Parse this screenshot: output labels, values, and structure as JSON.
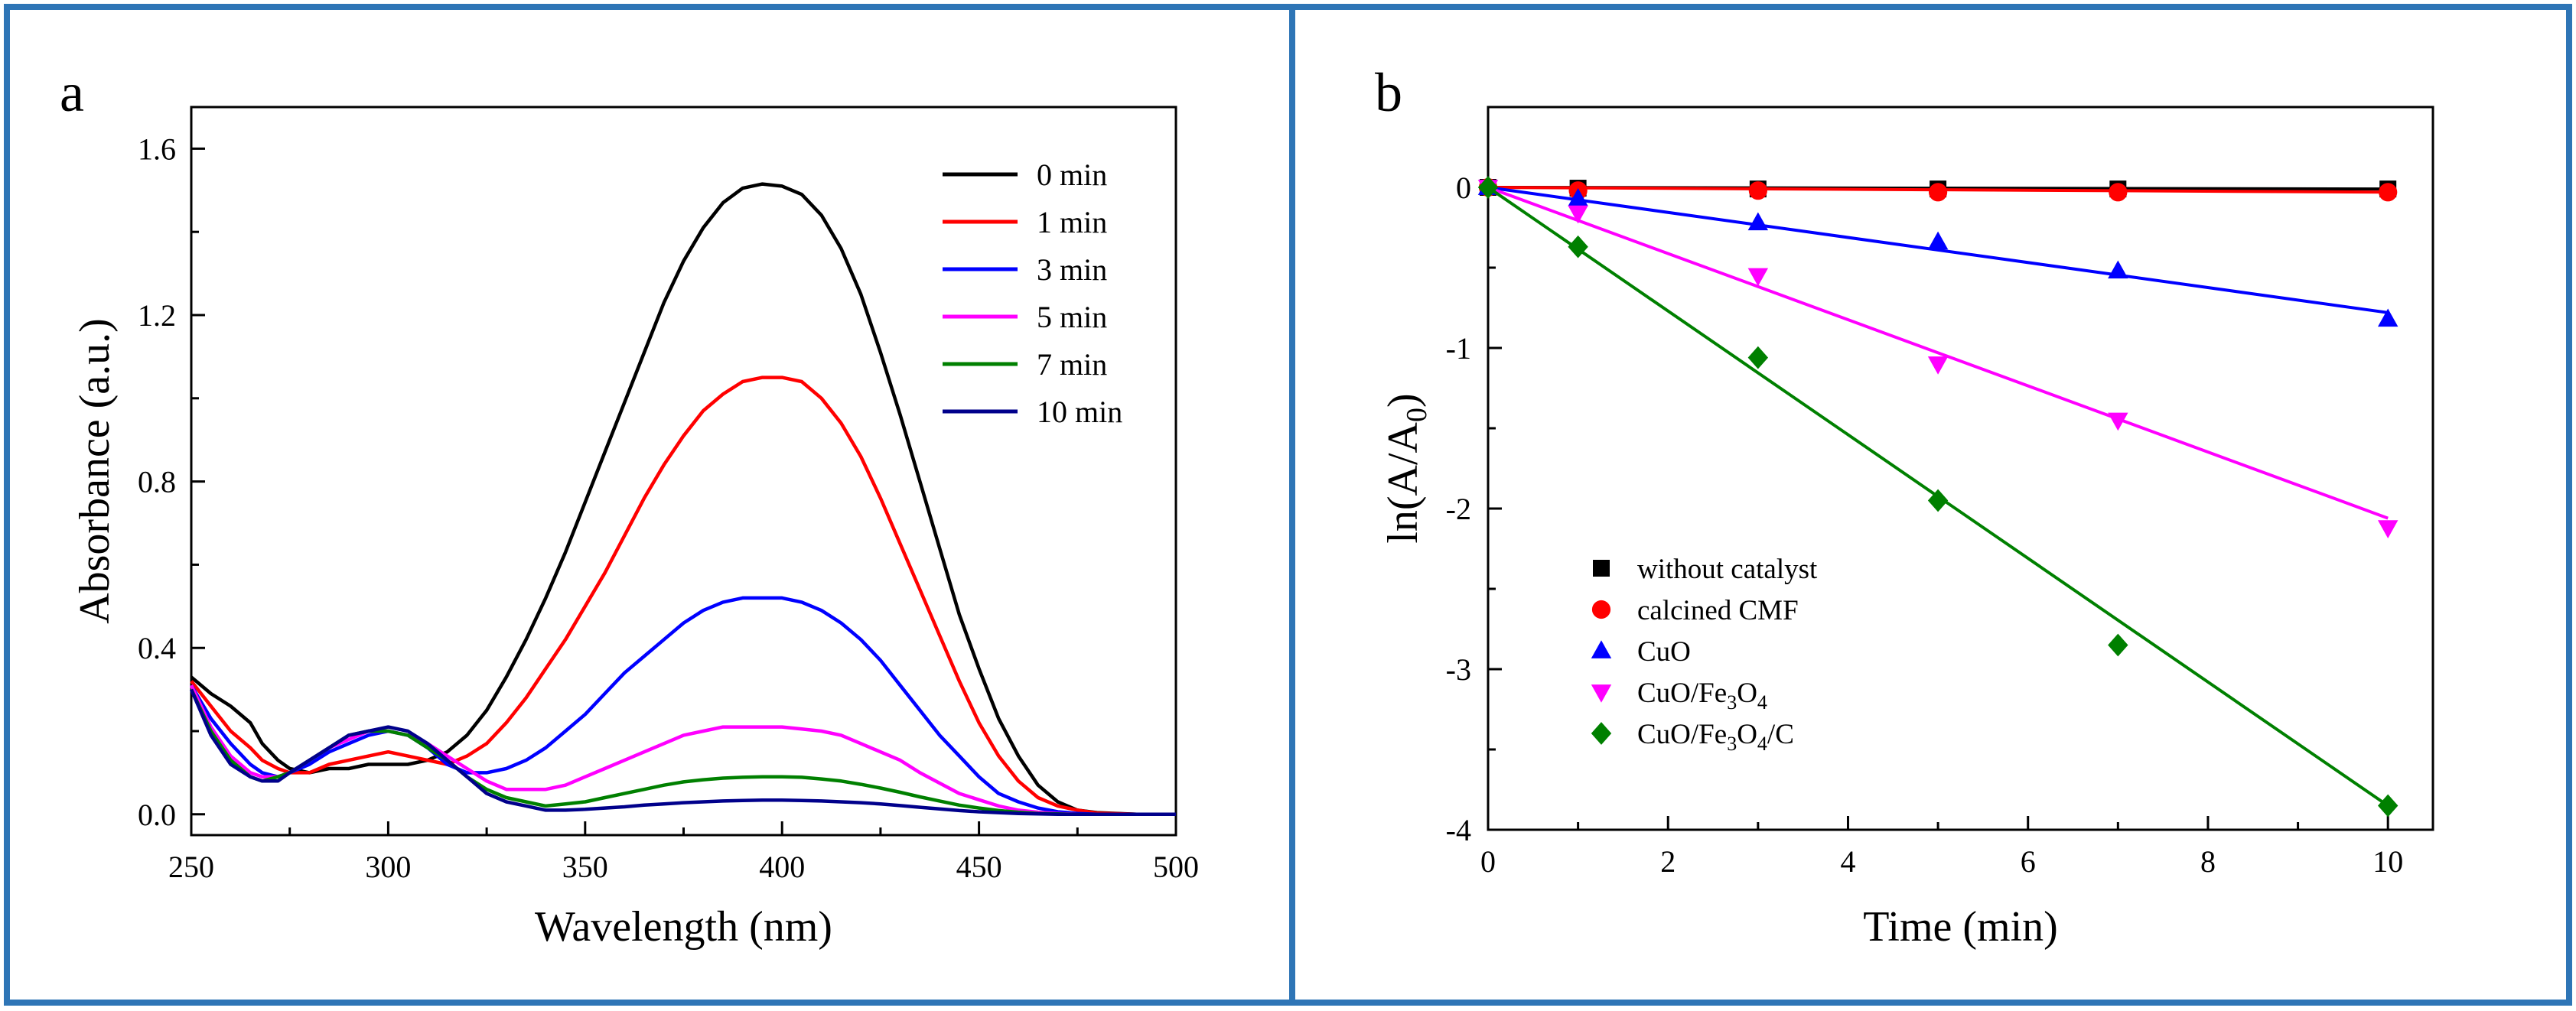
{
  "frame_color": "#2e75b6",
  "chart_data": [
    {
      "type": "line",
      "panel_label": "a",
      "title": "",
      "xlabel": "Wavelength (nm)",
      "ylabel": "Absorbance (a.u.)",
      "xlim": [
        250,
        500
      ],
      "ylim": [
        -0.05,
        1.7
      ],
      "xticks": [
        "250",
        "300",
        "350",
        "400",
        "450",
        "500"
      ],
      "yticks": [
        "0.0",
        "0.4",
        "0.8",
        "1.2",
        "1.6"
      ],
      "grid": false,
      "legend_position": "top-right",
      "x": [
        250,
        255,
        260,
        265,
        268,
        272,
        275,
        280,
        285,
        290,
        295,
        300,
        305,
        310,
        315,
        320,
        325,
        330,
        335,
        340,
        345,
        350,
        355,
        360,
        365,
        370,
        375,
        380,
        385,
        390,
        395,
        400,
        405,
        410,
        415,
        420,
        425,
        430,
        435,
        440,
        445,
        450,
        455,
        460,
        465,
        470,
        475,
        480,
        490,
        500
      ],
      "series": [
        {
          "name": "0 min",
          "color": "#000000",
          "values": [
            0.33,
            0.29,
            0.26,
            0.22,
            0.17,
            0.13,
            0.11,
            0.1,
            0.11,
            0.11,
            0.12,
            0.12,
            0.12,
            0.13,
            0.15,
            0.19,
            0.25,
            0.33,
            0.42,
            0.52,
            0.63,
            0.75,
            0.87,
            0.99,
            1.11,
            1.23,
            1.33,
            1.41,
            1.47,
            1.505,
            1.515,
            1.51,
            1.49,
            1.44,
            1.36,
            1.25,
            1.11,
            0.96,
            0.8,
            0.64,
            0.48,
            0.35,
            0.23,
            0.14,
            0.07,
            0.03,
            0.01,
            0.004,
            0.0,
            0.0
          ]
        },
        {
          "name": "1 min",
          "color": "#ff0000",
          "values": [
            0.32,
            0.26,
            0.2,
            0.16,
            0.13,
            0.11,
            0.1,
            0.1,
            0.12,
            0.13,
            0.14,
            0.15,
            0.14,
            0.13,
            0.12,
            0.14,
            0.17,
            0.22,
            0.28,
            0.35,
            0.42,
            0.5,
            0.58,
            0.67,
            0.76,
            0.84,
            0.91,
            0.97,
            1.01,
            1.04,
            1.05,
            1.05,
            1.04,
            1.0,
            0.94,
            0.86,
            0.76,
            0.65,
            0.54,
            0.43,
            0.32,
            0.22,
            0.14,
            0.08,
            0.04,
            0.02,
            0.01,
            0.003,
            0.0,
            0.0
          ]
        },
        {
          "name": "3 min",
          "color": "#0000ff",
          "values": [
            0.31,
            0.23,
            0.17,
            0.12,
            0.1,
            0.09,
            0.1,
            0.12,
            0.15,
            0.17,
            0.19,
            0.2,
            0.19,
            0.16,
            0.12,
            0.1,
            0.1,
            0.11,
            0.13,
            0.16,
            0.2,
            0.24,
            0.29,
            0.34,
            0.38,
            0.42,
            0.46,
            0.49,
            0.51,
            0.52,
            0.52,
            0.52,
            0.51,
            0.49,
            0.46,
            0.42,
            0.37,
            0.31,
            0.25,
            0.19,
            0.14,
            0.09,
            0.05,
            0.03,
            0.015,
            0.006,
            0.002,
            0.0,
            0.0,
            0.0
          ]
        },
        {
          "name": "5 min",
          "color": "#ff00ff",
          "values": [
            0.31,
            0.21,
            0.14,
            0.1,
            0.09,
            0.09,
            0.1,
            0.13,
            0.16,
            0.18,
            0.2,
            0.2,
            0.19,
            0.17,
            0.14,
            0.11,
            0.08,
            0.06,
            0.06,
            0.06,
            0.07,
            0.09,
            0.11,
            0.13,
            0.15,
            0.17,
            0.19,
            0.2,
            0.21,
            0.21,
            0.21,
            0.21,
            0.205,
            0.2,
            0.19,
            0.17,
            0.15,
            0.13,
            0.1,
            0.075,
            0.05,
            0.035,
            0.02,
            0.01,
            0.005,
            0.002,
            0.0,
            0.0,
            0.0,
            0.0
          ]
        },
        {
          "name": "7 min",
          "color": "#008000",
          "values": [
            0.3,
            0.2,
            0.13,
            0.09,
            0.08,
            0.09,
            0.1,
            0.13,
            0.16,
            0.19,
            0.2,
            0.2,
            0.19,
            0.16,
            0.13,
            0.09,
            0.06,
            0.04,
            0.03,
            0.02,
            0.025,
            0.03,
            0.04,
            0.05,
            0.06,
            0.07,
            0.078,
            0.083,
            0.087,
            0.089,
            0.09,
            0.09,
            0.089,
            0.085,
            0.08,
            0.072,
            0.063,
            0.053,
            0.042,
            0.032,
            0.022,
            0.015,
            0.009,
            0.005,
            0.002,
            0.001,
            0.0,
            0.0,
            0.0,
            0.0
          ]
        },
        {
          "name": "10 min",
          "color": "#00008b",
          "values": [
            0.3,
            0.19,
            0.12,
            0.09,
            0.08,
            0.08,
            0.1,
            0.13,
            0.16,
            0.19,
            0.2,
            0.21,
            0.2,
            0.17,
            0.13,
            0.09,
            0.05,
            0.03,
            0.02,
            0.01,
            0.01,
            0.012,
            0.015,
            0.018,
            0.022,
            0.025,
            0.028,
            0.03,
            0.032,
            0.033,
            0.034,
            0.034,
            0.033,
            0.032,
            0.03,
            0.028,
            0.025,
            0.021,
            0.017,
            0.013,
            0.009,
            0.006,
            0.004,
            0.002,
            0.001,
            0.0,
            0.0,
            0.0,
            0.0,
            0.0
          ]
        }
      ]
    },
    {
      "type": "scatter",
      "panel_label": "b",
      "title": "",
      "xlabel": "Time (min)",
      "ylabel_parts": [
        "ln(A/A",
        "0",
        ")"
      ],
      "xlim": [
        0,
        10.5
      ],
      "ylim": [
        -4.0,
        0.5
      ],
      "xticks": [
        "0",
        "2",
        "4",
        "6",
        "8",
        "10"
      ],
      "yticks": [
        "0",
        "-1",
        "-2",
        "-3",
        "-4"
      ],
      "grid": false,
      "legend_position": "bottom-left",
      "x": [
        0,
        1,
        3,
        5,
        7,
        10
      ],
      "series": [
        {
          "name": "without catalyst",
          "label_parts": [
            [
              "without catalyst",
              "n"
            ]
          ],
          "color": "#000000",
          "marker": "square",
          "values": [
            0,
            -0.005,
            -0.01,
            -0.01,
            -0.01,
            -0.01
          ],
          "fit_slope": -0.001
        },
        {
          "name": "calcined CMF",
          "label_parts": [
            [
              "calcined CMF",
              "n"
            ]
          ],
          "color": "#ff0000",
          "marker": "circle",
          "values": [
            0,
            -0.02,
            -0.02,
            -0.03,
            -0.03,
            -0.03
          ],
          "fit_slope": -0.003
        },
        {
          "name": "CuO",
          "label_parts": [
            [
              "CuO",
              "n"
            ]
          ],
          "color": "#0000ff",
          "marker": "triangle-up",
          "values": [
            0,
            -0.07,
            -0.22,
            -0.34,
            -0.52,
            -0.82
          ],
          "fit_slope": -0.078
        },
        {
          "name": "CuO/Fe3O4",
          "label_parts": [
            [
              "CuO/Fe",
              "n"
            ],
            [
              "3",
              "sub"
            ],
            [
              "O",
              "n"
            ],
            [
              "4",
              "sub"
            ]
          ],
          "color": "#ff00ff",
          "marker": "triangle-down",
          "values": [
            0,
            -0.16,
            -0.55,
            -1.1,
            -1.45,
            -2.12
          ],
          "fit_slope": -0.206
        },
        {
          "name": "CuO/Fe3O4/C",
          "label_parts": [
            [
              "CuO/Fe",
              "n"
            ],
            [
              "3",
              "sub"
            ],
            [
              "O",
              "n"
            ],
            [
              "4",
              "sub"
            ],
            [
              "/C",
              "n"
            ]
          ],
          "color": "#008000",
          "marker": "diamond",
          "values": [
            0,
            -0.37,
            -1.06,
            -1.95,
            -2.85,
            -3.85
          ],
          "fit_slope": -0.385
        }
      ]
    }
  ]
}
